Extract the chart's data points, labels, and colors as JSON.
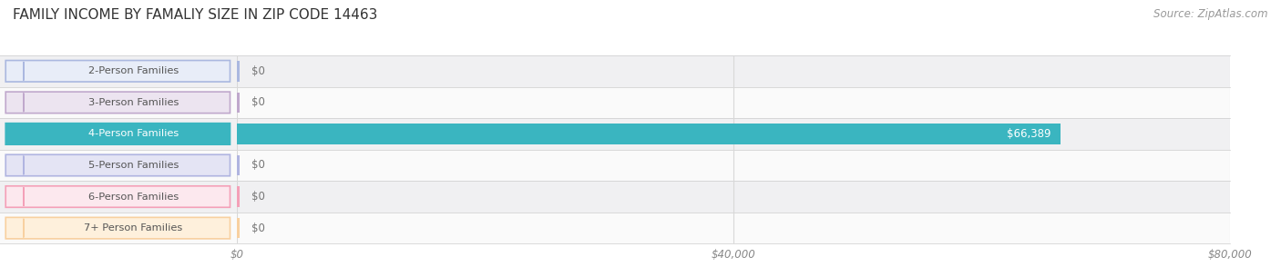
{
  "title": "FAMILY INCOME BY FAMALIY SIZE IN ZIP CODE 14463",
  "source": "Source: ZipAtlas.com",
  "categories": [
    "2-Person Families",
    "3-Person Families",
    "4-Person Families",
    "5-Person Families",
    "6-Person Families",
    "7+ Person Families"
  ],
  "values": [
    0,
    0,
    66389,
    0,
    0,
    0
  ],
  "bar_colors": [
    "#aab8e0",
    "#c0a8cc",
    "#3ab5c0",
    "#b0b4e0",
    "#f4a0b8",
    "#f8d0a0"
  ],
  "label_pill_fill": [
    "#e8edf8",
    "#ece4f0",
    "#3ab5c0",
    "#e4e4f4",
    "#fce8ee",
    "#fef0dc"
  ],
  "label_pill_border": [
    "#aab8e0",
    "#c0a8cc",
    "#3ab5c0",
    "#b0b4e0",
    "#f4a0b8",
    "#f8d0a0"
  ],
  "label_circle_color": [
    "#aab8e0",
    "#c0a8cc",
    "#3ab5c0",
    "#b0b4e0",
    "#f4a0b8",
    "#f8d0a0"
  ],
  "xlim": [
    0,
    80000
  ],
  "xticks": [
    0,
    40000,
    80000
  ],
  "xtick_labels": [
    "$0",
    "$40,000",
    "$80,000"
  ],
  "bar_label_color": "#ffffff",
  "value_label_color": "#777777",
  "value_labels": [
    "$0",
    "$0",
    "$66,389",
    "$0",
    "$0",
    "$0"
  ],
  "title_fontsize": 11,
  "source_fontsize": 8.5,
  "background_color": "#ffffff",
  "row_bg_even": "#f0f0f2",
  "row_bg_odd": "#fafafa",
  "grid_color": "#d8d8d8",
  "label_text_color": "#555555",
  "label_4person_text": "#ffffff"
}
